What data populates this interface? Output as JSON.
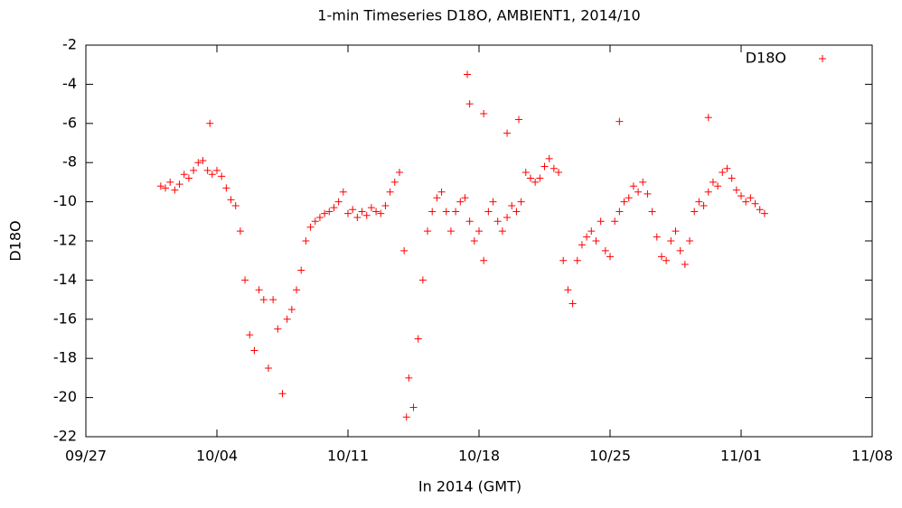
{
  "chart_data": {
    "type": "scatter",
    "title": "1-min Timeseries D18O, AMBIENT1, 2014/10",
    "x_label": "In 2014 (GMT)",
    "y_label": "D18O",
    "xlim": [
      "09/27",
      "11/08"
    ],
    "xticks": [
      "09/27",
      "10/04",
      "10/11",
      "10/18",
      "10/25",
      "11/01",
      "11/08"
    ],
    "ylim": [
      -22,
      -2
    ],
    "yticks": [
      -22,
      -20,
      -18,
      -16,
      -14,
      -12,
      -10,
      -8,
      -6,
      -4,
      -2
    ],
    "legend": "top-right",
    "series": [
      {
        "name": "D18O",
        "color": "#ff0000",
        "x": [
          "10/01 00:00",
          "10/01 06:00",
          "10/01 12:00",
          "10/01 18:00",
          "10/02 00:00",
          "10/02 06:00",
          "10/02 12:00",
          "10/02 18:00",
          "10/03 00:00",
          "10/03 06:00",
          "10/03 12:00",
          "10/03 18:00",
          "10/04 00:00",
          "10/04 06:00",
          "10/04 12:00",
          "10/04 18:00",
          "10/05 00:00",
          "10/05 06:00",
          "10/05 12:00",
          "10/05 18:00",
          "10/06 00:00",
          "10/06 06:00",
          "10/06 12:00",
          "10/06 18:00",
          "10/07 00:00",
          "10/07 06:00",
          "10/07 12:00",
          "10/07 18:00",
          "10/08 00:00",
          "10/08 06:00",
          "10/08 12:00",
          "10/08 18:00",
          "10/09 00:00",
          "10/09 06:00",
          "10/09 12:00",
          "10/09 18:00",
          "10/10 00:00",
          "10/10 06:00",
          "10/10 12:00",
          "10/10 18:00",
          "10/11 00:00",
          "10/11 06:00",
          "10/11 12:00",
          "10/11 18:00",
          "10/12 00:00",
          "10/12 06:00",
          "10/12 12:00",
          "10/12 18:00",
          "10/13 00:00",
          "10/13 06:00",
          "10/13 12:00",
          "10/13 18:00",
          "10/14 00:00",
          "10/14 06:00",
          "10/14 12:00",
          "10/14 18:00",
          "10/15 00:00",
          "10/15 06:00",
          "10/15 12:00",
          "10/15 18:00",
          "10/16 00:00",
          "10/16 06:00",
          "10/16 12:00",
          "10/16 18:00",
          "10/17 00:00",
          "10/17 06:00",
          "10/17 12:00",
          "10/17 18:00",
          "10/18 00:00",
          "10/18 06:00",
          "10/18 12:00",
          "10/18 18:00",
          "10/19 00:00",
          "10/19 06:00",
          "10/19 12:00",
          "10/19 18:00",
          "10/20 00:00",
          "10/20 06:00",
          "10/20 12:00",
          "10/20 18:00",
          "10/21 00:00",
          "10/21 06:00",
          "10/21 12:00",
          "10/21 18:00",
          "10/22 00:00",
          "10/22 06:00",
          "10/22 12:00",
          "10/22 18:00",
          "10/23 00:00",
          "10/23 06:00",
          "10/23 12:00",
          "10/23 18:00",
          "10/24 00:00",
          "10/24 06:00",
          "10/24 12:00",
          "10/24 18:00",
          "10/25 00:00",
          "10/25 06:00",
          "10/25 12:00",
          "10/25 18:00",
          "10/26 00:00",
          "10/26 06:00",
          "10/26 12:00",
          "10/26 18:00",
          "10/27 00:00",
          "10/27 06:00",
          "10/27 12:00",
          "10/27 18:00",
          "10/28 00:00",
          "10/28 06:00",
          "10/28 12:00",
          "10/28 18:00",
          "10/29 00:00",
          "10/29 06:00",
          "10/29 12:00",
          "10/29 18:00",
          "10/30 00:00",
          "10/30 06:00",
          "10/30 12:00",
          "10/30 18:00",
          "10/31 00:00",
          "10/31 06:00",
          "10/31 12:00",
          "10/31 18:00",
          "11/01 00:00",
          "11/01 06:00",
          "11/01 12:00",
          "11/01 18:00",
          "11/02 00:00",
          "11/02 06:00",
          "10/03 15:00",
          "10/14 03:00",
          "10/17 09:00",
          "10/17 12:00",
          "10/18 06:00",
          "10/19 12:00",
          "10/20 03:00",
          "10/25 12:00",
          "10/30 06:00"
        ],
        "values": [
          -9.2,
          -9.3,
          -9.0,
          -9.4,
          -9.1,
          -8.6,
          -8.8,
          -8.4,
          -8.0,
          -7.9,
          -8.4,
          -8.6,
          -8.4,
          -8.7,
          -9.3,
          -9.9,
          -10.2,
          -11.5,
          -14,
          -16.8,
          -17.6,
          -14.5,
          -15,
          -18.5,
          -15,
          -16.5,
          -19.8,
          -16,
          -15.5,
          -14.5,
          -13.5,
          -12,
          -11.3,
          -11,
          -10.8,
          -10.6,
          -10.5,
          -10.3,
          -10,
          -9.5,
          -10.6,
          -10.4,
          -10.8,
          -10.5,
          -10.7,
          -10.3,
          -10.5,
          -10.6,
          -10.2,
          -9.5,
          -9,
          -8.5,
          -12.5,
          -19,
          -20.5,
          -17,
          -14,
          -11.5,
          -10.5,
          -9.8,
          -9.5,
          -10.5,
          -11.5,
          -10.5,
          -10,
          -9.8,
          -11,
          -12,
          -11.5,
          -13,
          -10.5,
          -10,
          -11,
          -11.5,
          -10.8,
          -10.2,
          -10.5,
          -10,
          -8.5,
          -8.8,
          -9,
          -8.8,
          -8.2,
          -7.8,
          -8.3,
          -8.5,
          -13,
          -14.5,
          -15.2,
          -13,
          -12.2,
          -11.8,
          -11.5,
          -12,
          -11,
          -12.5,
          -12.8,
          -11,
          -10.5,
          -10,
          -9.8,
          -9.2,
          -9.5,
          -9,
          -9.6,
          -10.5,
          -11.8,
          -12.8,
          -13,
          -12,
          -11.5,
          -12.5,
          -13.2,
          -12,
          -10.5,
          -10,
          -10.2,
          -9.5,
          -9,
          -9.2,
          -8.5,
          -8.3,
          -8.8,
          -9.4,
          -9.7,
          -10,
          -9.8,
          -10.1,
          -10.4,
          -10.6,
          -6.0,
          -21,
          -3.5,
          -5.0,
          -5.5,
          -6.5,
          -5.8,
          -5.9,
          -5.7
        ]
      }
    ]
  }
}
